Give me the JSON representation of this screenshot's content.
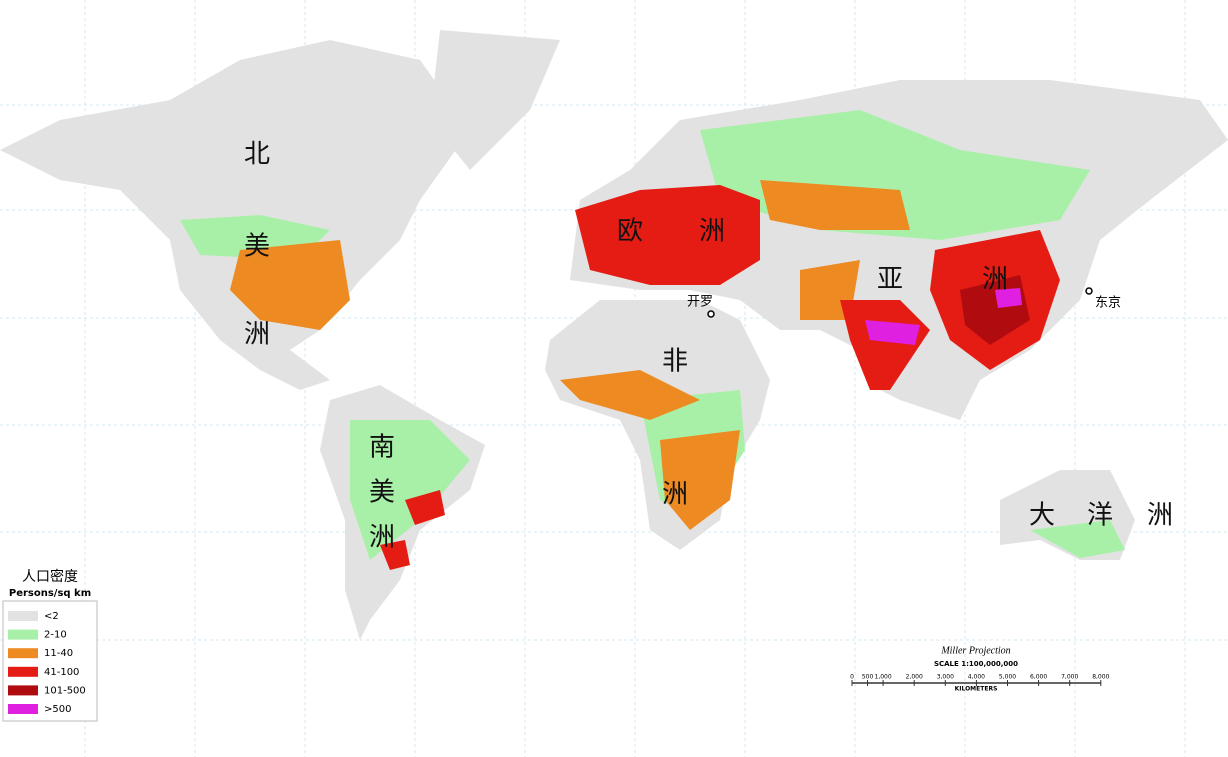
{
  "continents": [
    {
      "chars": [
        "北",
        "美",
        "洲"
      ]
    },
    {
      "chars": [
        "欧",
        "洲"
      ]
    },
    {
      "chars": [
        "亚",
        "洲"
      ]
    },
    {
      "chars": [
        "非",
        "洲"
      ]
    },
    {
      "chars": [
        "南",
        "美",
        "洲"
      ]
    },
    {
      "chars": [
        "大",
        "洋",
        "洲"
      ]
    }
  ],
  "cities": [
    {
      "label": "开罗"
    },
    {
      "label": "东京"
    }
  ],
  "legend": {
    "title": "人口密度",
    "subtitle": "Persons/sq km",
    "items": [
      {
        "label": "<2",
        "color": "#e2e2e2"
      },
      {
        "label": "2-10",
        "color": "#a8f0a8"
      },
      {
        "label": "11-40",
        "color": "#ee8a22"
      },
      {
        "label": "41-100",
        "color": "#e41c14"
      },
      {
        "label": "101-500",
        "color": "#b00c10"
      },
      {
        "label": ">500",
        "color": "#e020e0"
      }
    ]
  },
  "scale": {
    "projection": "Miller Projection",
    "ratio": "SCALE 1:100,000,000",
    "unit": "KILOMETERS",
    "ticks": [
      0,
      500,
      {
        "value": 1000,
        "label": "1,000"
      },
      {
        "value": 2000,
        "label": "2,000"
      },
      {
        "value": 3000,
        "label": "3,000"
      },
      {
        "value": 4000,
        "label": "4,000"
      },
      {
        "value": 5000,
        "label": "5,000"
      },
      {
        "value": 6000,
        "label": "6,000"
      },
      {
        "value": 7000,
        "label": "7,000"
      },
      {
        "value": 8000,
        "label": "8,000"
      }
    ]
  }
}
